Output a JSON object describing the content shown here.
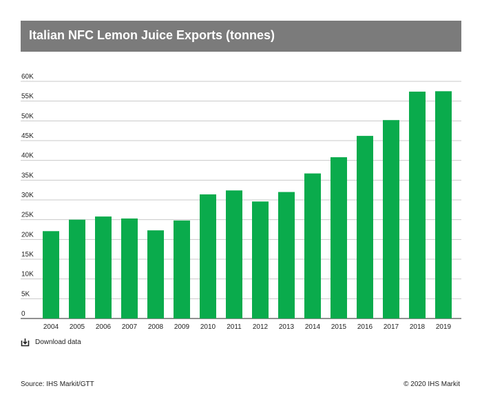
{
  "chart_data": {
    "type": "bar",
    "title": "Italian NFC Lemon Juice Exports (tonnes)",
    "xlabel": "",
    "ylabel": "",
    "categories": [
      "2004",
      "2005",
      "2006",
      "2007",
      "2008",
      "2009",
      "2010",
      "2011",
      "2012",
      "2013",
      "2014",
      "2015",
      "2016",
      "2017",
      "2018",
      "2019"
    ],
    "values": [
      22100,
      25000,
      25800,
      25300,
      22300,
      24800,
      31400,
      32400,
      29600,
      32000,
      36700,
      40800,
      46200,
      50200,
      57400,
      57500
    ],
    "ylim": [
      0,
      60000
    ],
    "yticks": [
      0,
      5000,
      10000,
      15000,
      20000,
      25000,
      30000,
      35000,
      40000,
      45000,
      50000,
      55000,
      60000
    ],
    "ytick_labels": [
      "0",
      "5K",
      "10K",
      "15K",
      "20K",
      "25K",
      "30K",
      "35K",
      "40K",
      "45K",
      "50K",
      "55K",
      "60K"
    ],
    "bar_color": "#0aab4c",
    "grid": true,
    "legend": "none"
  },
  "download": {
    "label": "Download data",
    "icon": "download-icon"
  },
  "footer": {
    "source": "Source: IHS Markit/GTT",
    "copyright": "© 2020 IHS Markit"
  },
  "colors": {
    "title_bg": "#7b7b7b",
    "grid": "#c8c8c8",
    "bar": "#0aab4c"
  }
}
